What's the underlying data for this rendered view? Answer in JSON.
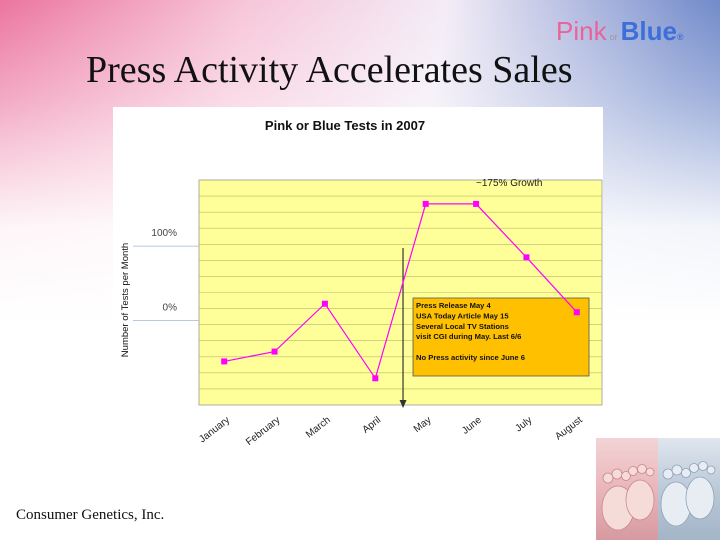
{
  "slide": {
    "title": "Press Activity Accelerates Sales",
    "footer": "Consumer Genetics, Inc."
  },
  "logo": {
    "pink": "Pink",
    "or": "or",
    "blue": "Blue",
    "registered": "®",
    "colors": {
      "pink": "#e8649a",
      "blue": "#3d6fd8"
    }
  },
  "photo": {
    "description_icon": "baby-feet-photo"
  },
  "chart_data": {
    "type": "line",
    "title": "Pink or Blue Tests in 2007",
    "ylabel": "Number of Tests per Month",
    "xlabel": "",
    "categories": [
      "January",
      "February",
      "March",
      "April",
      "May",
      "June",
      "July",
      "August"
    ],
    "series": [
      {
        "values": [
          0.31,
          0.38,
          0.72,
          0.19,
          1.43,
          1.43,
          1.05,
          0.66
        ],
        "color": "#ff00ff"
      }
    ],
    "ylim": [
      0,
      1.6
    ],
    "y_axis_ticks_hidden": true,
    "plot_background": "#ffff99",
    "grid": "horizontal",
    "reference_lines": [
      {
        "label": "100%",
        "value": 1.13
      },
      {
        "label": "0%",
        "value": 0.6
      }
    ],
    "annotations": {
      "growth": "~175% Growth",
      "press_box_lines": [
        "Press Release May 4",
        "USA Today Article May 15",
        "Several Local TV Stations",
        " visit CGI during May.  Last 6/6",
        "",
        "No Press activity since June 6"
      ],
      "press_box_color": "#ffc000",
      "arrow_position_category_index": 3.55
    }
  }
}
